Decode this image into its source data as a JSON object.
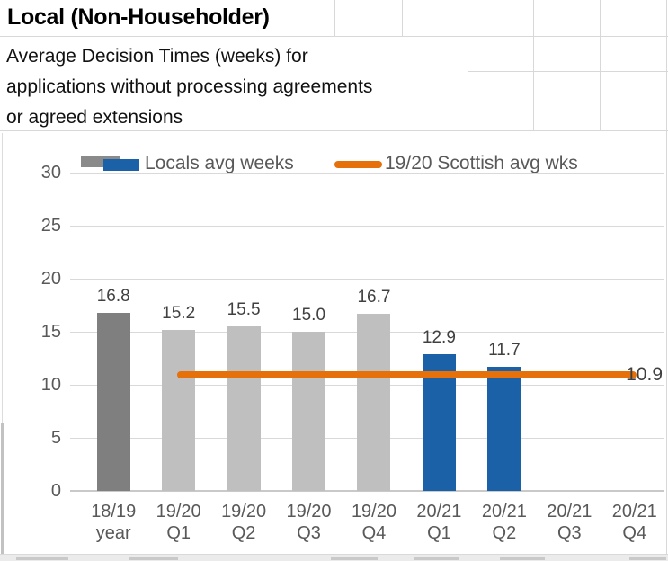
{
  "header": {
    "title": "Local (Non-Householder)",
    "subtitle_lines": [
      "Average Decision Times (weeks) for",
      "applications without processing agreements",
      "or agreed extensions"
    ]
  },
  "legend": {
    "bars_label": "Locals avg weeks",
    "line_label": "19/20 Scottish avg wks"
  },
  "chart_data": {
    "type": "bar",
    "title": "Average Decision Times (weeks) for applications without processing agreements or agreed extensions",
    "categories": [
      "18/19 year",
      "19/20 Q1",
      "19/20 Q2",
      "19/20 Q3",
      "19/20 Q4",
      "20/21 Q1",
      "20/21 Q2",
      "20/21 Q3",
      "20/21 Q4"
    ],
    "category_lines": [
      [
        "18/19",
        "year"
      ],
      [
        "19/20",
        "Q1"
      ],
      [
        "19/20",
        "Q2"
      ],
      [
        "19/20",
        "Q3"
      ],
      [
        "19/20",
        "Q4"
      ],
      [
        "20/21",
        "Q1"
      ],
      [
        "20/21",
        "Q2"
      ],
      [
        "20/21",
        "Q3"
      ],
      [
        "20/21",
        "Q4"
      ]
    ],
    "series": [
      {
        "name": "Locals avg weeks",
        "type": "bar",
        "values": [
          16.8,
          15.2,
          15.5,
          15.0,
          16.7,
          12.9,
          11.7,
          null,
          null
        ],
        "bar_colors": [
          "#7f7f7f",
          "#bfbfbf",
          "#bfbfbf",
          "#bfbfbf",
          "#bfbfbf",
          "#1a61a7",
          "#1a61a7",
          null,
          null
        ],
        "data_labels": [
          "16.8",
          "15.2",
          "15.5",
          "15.0",
          "16.7",
          "12.9",
          "11.7",
          null,
          null
        ]
      },
      {
        "name": "19/20 Scottish avg wks",
        "type": "line",
        "value": 10.9,
        "span_categories": [
          "19/20 Q1",
          "20/21 Q4"
        ],
        "color": "#e6700a",
        "end_label": "10.9"
      }
    ],
    "ylim": [
      0,
      30
    ],
    "yticks": [
      0,
      5,
      10,
      15,
      20,
      25,
      30
    ],
    "grid": true,
    "legend_position": "top"
  },
  "colors": {
    "bar_prev_year": "#7f7f7f",
    "bar_1920": "#bfbfbf",
    "bar_2021": "#1a61a7",
    "scottish_avg_line": "#e6700a",
    "chart_text": "#595959",
    "value_text": "#404040",
    "gridline": "#d9d9d9"
  }
}
